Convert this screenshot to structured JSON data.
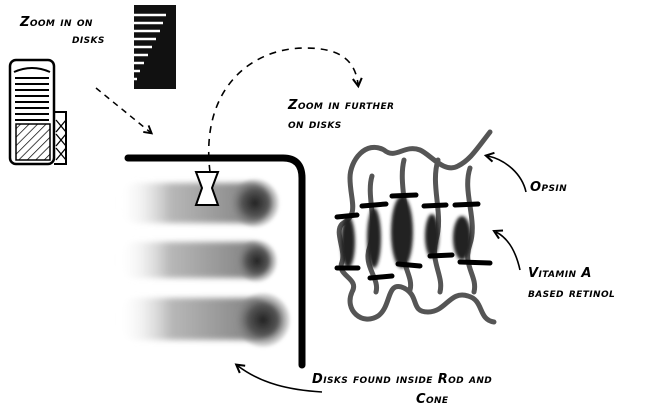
{
  "labels": {
    "zoom_in_line1": "Zoom in on",
    "zoom_in_line2": "disks",
    "zoom_further_line1": "Zoom in further",
    "zoom_further_line2": "on disks",
    "opsin": "Opsin",
    "vitamin_line1": "Vitamin A",
    "vitamin_line2": "based retinol",
    "disks_line1": "Disks found inside Rod and",
    "disks_line2": "Cone"
  },
  "colors": {
    "ink": "#000000",
    "gray": "#555555",
    "background": "#ffffff"
  }
}
